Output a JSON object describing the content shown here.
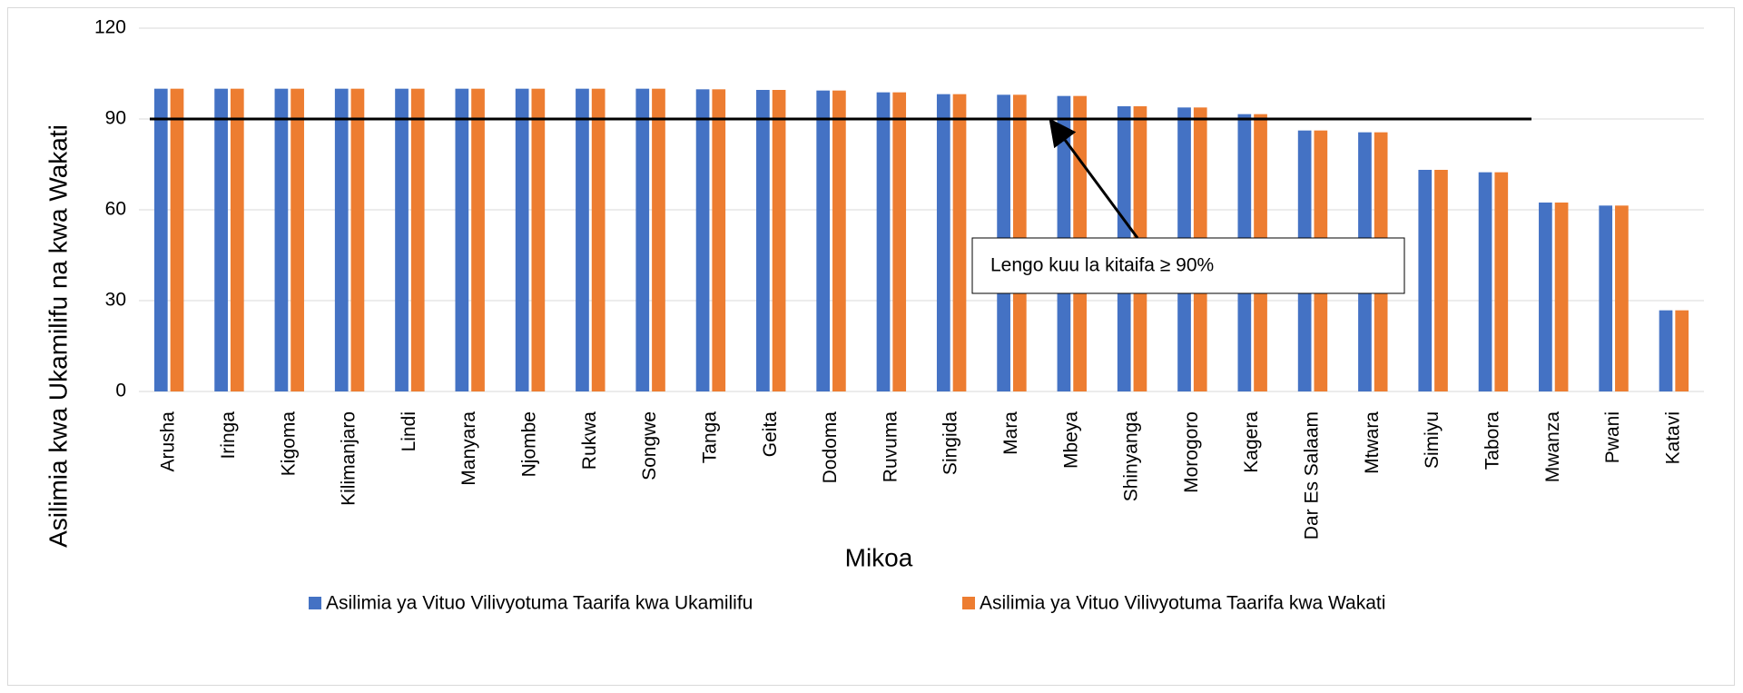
{
  "chart_data": {
    "type": "bar",
    "x_label": "Mikoa",
    "y_label": "Asilimia  kwa Ukamilifu na kwa Wakati",
    "categories": [
      "Arusha",
      "Iringa",
      "Kigoma",
      "Kilimanjaro",
      "Lindi",
      "Manyara",
      "Njombe",
      "Rukwa",
      "Songwe",
      "Tanga",
      "Geita",
      "Dodoma",
      "Ruvuma",
      "Singida",
      "Mara",
      "Mbeya",
      "Shinyanga",
      "Morogoro",
      "Kagera",
      "Dar Es Salaam",
      "Mtwara",
      "Simiyu",
      "Tabora",
      "Mwanza",
      "Pwani",
      "Katavi"
    ],
    "series": [
      {
        "name": "Asilimia ya Vituo Vilivyotuma Taarifa kwa Ukamilifu",
        "color": "#4472c4",
        "values": [
          100,
          100,
          100,
          100,
          100,
          100,
          100,
          100,
          100,
          99.8,
          99.6,
          99.4,
          98.8,
          98.2,
          98,
          97.6,
          94.2,
          93.8,
          91.6,
          86.2,
          85.6,
          73.2,
          72.4,
          62.4,
          61.4,
          26.8
        ]
      },
      {
        "name": "Asilimia ya Vituo Vilivyotuma Taarifa kwa Wakati",
        "color": "#ed7d31",
        "values": [
          100,
          100,
          100,
          100,
          100,
          100,
          100,
          100,
          100,
          99.8,
          99.6,
          99.4,
          98.8,
          98.2,
          98,
          97.6,
          94.2,
          93.8,
          91.6,
          86.2,
          85.6,
          73.2,
          72.4,
          62.4,
          61.4,
          26.8
        ]
      }
    ],
    "target": 90,
    "annotation": "Lengo kuu la kitaifa ≥ 90%",
    "ylim": [
      0,
      120
    ],
    "yticks": [
      0,
      30,
      60,
      90,
      120
    ],
    "grid": true,
    "legend": "bottom"
  }
}
